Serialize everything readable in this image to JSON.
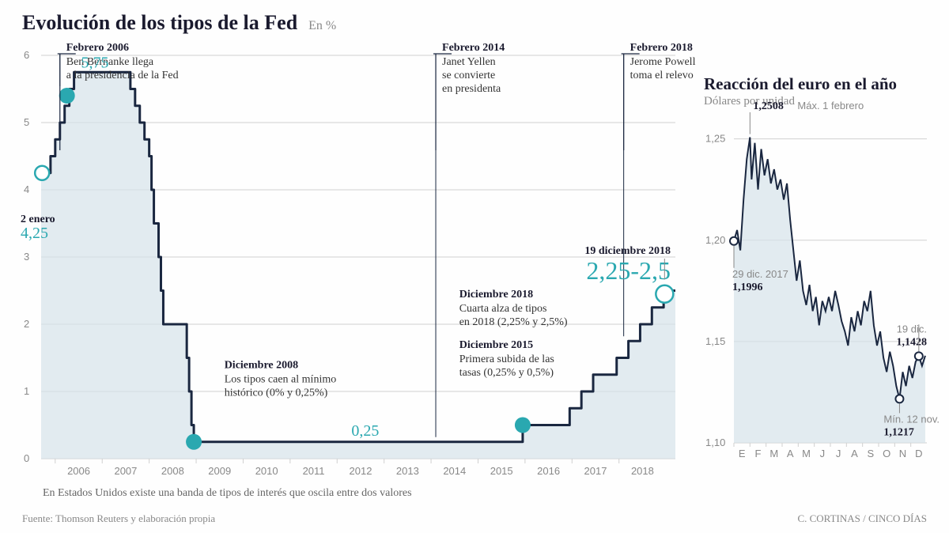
{
  "main": {
    "title": "Evolución de los tipos de la Fed",
    "subtitle": "En %",
    "note": "En Estados Unidos existe una banda de tipos de interés que oscila entre dos valores",
    "source": "Fuente: Thomson Reuters y elaboración propia",
    "credit": "C. CORTINAS / CINCO DÍAS"
  },
  "colors": {
    "line": "#1a2740",
    "fill": "#d6e3ea",
    "accent": "#2aa8b0",
    "grid": "#d0d0d0",
    "axis_text": "#888888",
    "text": "#1a1a2e"
  },
  "fed_chart": {
    "type": "step-area",
    "xlim": [
      2005.7,
      2019.2
    ],
    "ylim": [
      0,
      6
    ],
    "ytick_step": 1,
    "xticks": [
      "2006",
      "2007",
      "2008",
      "2009",
      "2010",
      "2011",
      "2012",
      "2013",
      "2014",
      "2015",
      "2016",
      "2017",
      "2018"
    ],
    "line_width": 3,
    "series": [
      [
        2005.7,
        4.25
      ],
      [
        2005.9,
        4.5
      ],
      [
        2006.0,
        4.75
      ],
      [
        2006.1,
        5.0
      ],
      [
        2006.2,
        5.25
      ],
      [
        2006.3,
        5.5
      ],
      [
        2006.4,
        5.75
      ],
      [
        2007.6,
        5.5
      ],
      [
        2007.7,
        5.25
      ],
      [
        2007.8,
        5.0
      ],
      [
        2007.9,
        4.75
      ],
      [
        2008.0,
        4.5
      ],
      [
        2008.05,
        4.0
      ],
      [
        2008.1,
        3.5
      ],
      [
        2008.2,
        3.0
      ],
      [
        2008.25,
        2.5
      ],
      [
        2008.3,
        2.0
      ],
      [
        2008.8,
        1.5
      ],
      [
        2008.85,
        1.0
      ],
      [
        2008.9,
        0.5
      ],
      [
        2008.95,
        0.25
      ],
      [
        2015.95,
        0.5
      ],
      [
        2016.95,
        0.75
      ],
      [
        2017.2,
        1.0
      ],
      [
        2017.45,
        1.25
      ],
      [
        2017.95,
        1.5
      ],
      [
        2018.2,
        1.75
      ],
      [
        2018.45,
        2.0
      ],
      [
        2018.7,
        2.25
      ],
      [
        2018.95,
        2.5
      ],
      [
        2019.2,
        2.5
      ]
    ],
    "markers": [
      {
        "x": 2005.72,
        "y": 4.25,
        "r": 9,
        "open": true
      },
      {
        "x": 2006.25,
        "y": 5.4,
        "r": 10,
        "open": false
      },
      {
        "x": 2008.95,
        "y": 0.25,
        "r": 10,
        "open": false
      },
      {
        "x": 2015.95,
        "y": 0.5,
        "r": 10,
        "open": false
      },
      {
        "x": 2018.97,
        "y": 2.45,
        "r": 11,
        "open": true
      }
    ],
    "highlights": {
      "start_date": "2 enero",
      "start_val": "4,25",
      "peak_val": "5,75",
      "low_val": "0,25",
      "end_date": "19 diciembre 2018",
      "end_val": "2,25-2,5"
    },
    "annotations": [
      {
        "x": 2006.1,
        "top": true,
        "date": "Febrero 2006",
        "lines": [
          "Ben Bernanke llega",
          "a la presidencia de la Fed"
        ]
      },
      {
        "x": 2014.1,
        "top": true,
        "date": "Febrero 2014",
        "lines": [
          "Janet Yellen",
          "se convierte",
          "en presidenta"
        ]
      },
      {
        "x": 2018.1,
        "top": true,
        "date": "Febrero 2018",
        "lines": [
          "Jerome Powell",
          "toma el relevo"
        ]
      },
      {
        "date": "Diciembre 2008",
        "lines": [
          "Los tipos caen al mínimo",
          "histórico (0% y 0,25%)"
        ]
      },
      {
        "date": "Diciembre 2015",
        "lines": [
          "Primera subida de las",
          "tasas (0,25% y 0,5%)"
        ]
      },
      {
        "date": "Diciembre 2018",
        "lines": [
          "Cuarta alza de tipos",
          "en 2018 (2,25% y 2,5%)"
        ]
      }
    ]
  },
  "euro_chart": {
    "title": "Reacción del euro en el año",
    "subtitle": "Dólares por unidad",
    "type": "line-area",
    "xlim": [
      0,
      12
    ],
    "ylim": [
      1.1,
      1.26
    ],
    "yticks": [
      "1,10",
      "1,15",
      "1,20",
      "1,25"
    ],
    "xticks": [
      "E",
      "F",
      "M",
      "A",
      "M",
      "J",
      "J",
      "A",
      "S",
      "O",
      "N",
      "D"
    ],
    "line_width": 2,
    "peak": {
      "val": "1,2508",
      "label": "Máx. 1 febrero"
    },
    "start": {
      "date": "29 dic. 2017",
      "val": "1,1996"
    },
    "min": {
      "label": "Mín. 12 nov.",
      "val": "1,1217"
    },
    "end": {
      "date": "19 dic.",
      "val": "1,1428"
    },
    "series": [
      [
        0.0,
        1.1996
      ],
      [
        0.2,
        1.205
      ],
      [
        0.4,
        1.195
      ],
      [
        0.6,
        1.22
      ],
      [
        0.8,
        1.24
      ],
      [
        1.0,
        1.2508
      ],
      [
        1.1,
        1.23
      ],
      [
        1.3,
        1.248
      ],
      [
        1.5,
        1.225
      ],
      [
        1.7,
        1.245
      ],
      [
        1.9,
        1.232
      ],
      [
        2.1,
        1.24
      ],
      [
        2.3,
        1.228
      ],
      [
        2.5,
        1.235
      ],
      [
        2.7,
        1.225
      ],
      [
        2.9,
        1.23
      ],
      [
        3.1,
        1.22
      ],
      [
        3.3,
        1.228
      ],
      [
        3.5,
        1.21
      ],
      [
        3.7,
        1.195
      ],
      [
        3.9,
        1.18
      ],
      [
        4.1,
        1.19
      ],
      [
        4.3,
        1.175
      ],
      [
        4.5,
        1.168
      ],
      [
        4.7,
        1.178
      ],
      [
        4.9,
        1.165
      ],
      [
        5.1,
        1.172
      ],
      [
        5.3,
        1.158
      ],
      [
        5.5,
        1.17
      ],
      [
        5.7,
        1.165
      ],
      [
        5.9,
        1.172
      ],
      [
        6.1,
        1.165
      ],
      [
        6.3,
        1.175
      ],
      [
        6.5,
        1.168
      ],
      [
        6.7,
        1.16
      ],
      [
        6.9,
        1.155
      ],
      [
        7.1,
        1.148
      ],
      [
        7.3,
        1.162
      ],
      [
        7.5,
        1.155
      ],
      [
        7.7,
        1.165
      ],
      [
        7.9,
        1.158
      ],
      [
        8.1,
        1.17
      ],
      [
        8.3,
        1.165
      ],
      [
        8.5,
        1.175
      ],
      [
        8.7,
        1.158
      ],
      [
        8.9,
        1.148
      ],
      [
        9.1,
        1.155
      ],
      [
        9.3,
        1.142
      ],
      [
        9.5,
        1.135
      ],
      [
        9.7,
        1.145
      ],
      [
        9.9,
        1.138
      ],
      [
        10.1,
        1.128
      ],
      [
        10.3,
        1.1217
      ],
      [
        10.5,
        1.135
      ],
      [
        10.7,
        1.128
      ],
      [
        10.9,
        1.138
      ],
      [
        11.1,
        1.132
      ],
      [
        11.3,
        1.14
      ],
      [
        11.5,
        1.1428
      ],
      [
        11.7,
        1.138
      ],
      [
        11.9,
        1.143
      ]
    ],
    "markers": [
      {
        "x": 0.0,
        "y": 1.1996,
        "open": true
      },
      {
        "x": 10.3,
        "y": 1.1217,
        "open": true
      },
      {
        "x": 11.5,
        "y": 1.1428,
        "open": true
      }
    ]
  }
}
